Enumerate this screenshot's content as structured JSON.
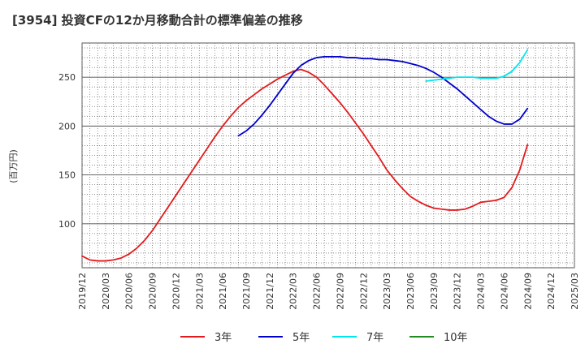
{
  "chart_data": {
    "type": "line",
    "title": "[3954]  投資CFの12か月移動合計の標準偏差の推移",
    "ylabel": "(百万円)",
    "xlabel": "",
    "ylim": [
      55,
      285
    ],
    "yticks": [
      100,
      150,
      200,
      250
    ],
    "xticks": [
      "2019/12",
      "2020/03",
      "2020/06",
      "2020/09",
      "2020/12",
      "2021/03",
      "2021/06",
      "2021/09",
      "2021/12",
      "2022/03",
      "2022/06",
      "2022/09",
      "2022/12",
      "2023/03",
      "2023/06",
      "2023/09",
      "2023/12",
      "2024/03",
      "2024/06",
      "2024/09",
      "2024/12",
      "2025/03"
    ],
    "grid": true,
    "legend_position": "bottom",
    "series": [
      {
        "name": "3年",
        "color": "#e31a1c",
        "points": [
          [
            "2019/12",
            67
          ],
          [
            "2020/01",
            63
          ],
          [
            "2020/02",
            62
          ],
          [
            "2020/03",
            62
          ],
          [
            "2020/04",
            63
          ],
          [
            "2020/05",
            65
          ],
          [
            "2020/06",
            69
          ],
          [
            "2020/07",
            75
          ],
          [
            "2020/08",
            83
          ],
          [
            "2020/09",
            93
          ],
          [
            "2020/10",
            105
          ],
          [
            "2020/11",
            117
          ],
          [
            "2020/12",
            129
          ],
          [
            "2021/01",
            141
          ],
          [
            "2021/02",
            153
          ],
          [
            "2021/03",
            165
          ],
          [
            "2021/04",
            177
          ],
          [
            "2021/05",
            189
          ],
          [
            "2021/06",
            200
          ],
          [
            "2021/07",
            210
          ],
          [
            "2021/08",
            219
          ],
          [
            "2021/09",
            226
          ],
          [
            "2021/10",
            232
          ],
          [
            "2021/11",
            238
          ],
          [
            "2021/12",
            243
          ],
          [
            "2022/01",
            248
          ],
          [
            "2022/02",
            252
          ],
          [
            "2022/03",
            256
          ],
          [
            "2022/04",
            258
          ],
          [
            "2022/05",
            255
          ],
          [
            "2022/06",
            250
          ],
          [
            "2022/07",
            242
          ],
          [
            "2022/08",
            233
          ],
          [
            "2022/09",
            224
          ],
          [
            "2022/10",
            214
          ],
          [
            "2022/11",
            203
          ],
          [
            "2022/12",
            192
          ],
          [
            "2023/01",
            180
          ],
          [
            "2023/02",
            168
          ],
          [
            "2023/03",
            155
          ],
          [
            "2023/04",
            145
          ],
          [
            "2023/05",
            136
          ],
          [
            "2023/06",
            128
          ],
          [
            "2023/07",
            123
          ],
          [
            "2023/08",
            119
          ],
          [
            "2023/09",
            116
          ],
          [
            "2023/10",
            115
          ],
          [
            "2023/11",
            114
          ],
          [
            "2023/12",
            114
          ],
          [
            "2024/01",
            115
          ],
          [
            "2024/02",
            118
          ],
          [
            "2024/03",
            122
          ],
          [
            "2024/04",
            123
          ],
          [
            "2024/05",
            124
          ],
          [
            "2024/06",
            127
          ],
          [
            "2024/07",
            137
          ],
          [
            "2024/08",
            155
          ],
          [
            "2024/09",
            181
          ]
        ]
      },
      {
        "name": "5年",
        "color": "#0000cc",
        "points": [
          [
            "2021/08",
            190
          ],
          [
            "2021/09",
            195
          ],
          [
            "2021/10",
            202
          ],
          [
            "2021/11",
            211
          ],
          [
            "2021/12",
            221
          ],
          [
            "2022/01",
            232
          ],
          [
            "2022/02",
            243
          ],
          [
            "2022/03",
            254
          ],
          [
            "2022/04",
            262
          ],
          [
            "2022/05",
            267
          ],
          [
            "2022/06",
            270
          ],
          [
            "2022/07",
            271
          ],
          [
            "2022/08",
            271
          ],
          [
            "2022/09",
            271
          ],
          [
            "2022/10",
            270
          ],
          [
            "2022/11",
            270
          ],
          [
            "2022/12",
            269
          ],
          [
            "2023/01",
            269
          ],
          [
            "2023/02",
            268
          ],
          [
            "2023/03",
            268
          ],
          [
            "2023/04",
            267
          ],
          [
            "2023/05",
            266
          ],
          [
            "2023/06",
            264
          ],
          [
            "2023/07",
            262
          ],
          [
            "2023/08",
            259
          ],
          [
            "2023/09",
            255
          ],
          [
            "2023/10",
            250
          ],
          [
            "2023/11",
            244
          ],
          [
            "2023/12",
            238
          ],
          [
            "2024/01",
            231
          ],
          [
            "2024/02",
            224
          ],
          [
            "2024/03",
            217
          ],
          [
            "2024/04",
            210
          ],
          [
            "2024/05",
            205
          ],
          [
            "2024/06",
            202
          ],
          [
            "2024/07",
            202
          ],
          [
            "2024/08",
            207
          ],
          [
            "2024/09",
            218
          ]
        ]
      },
      {
        "name": "7年",
        "color": "#00e5ee",
        "points": [
          [
            "2023/08",
            246
          ],
          [
            "2023/09",
            247
          ],
          [
            "2023/10",
            248
          ],
          [
            "2023/11",
            249
          ],
          [
            "2023/12",
            250
          ],
          [
            "2024/01",
            250
          ],
          [
            "2024/02",
            250
          ],
          [
            "2024/03",
            249
          ],
          [
            "2024/04",
            249
          ],
          [
            "2024/05",
            249
          ],
          [
            "2024/06",
            251
          ],
          [
            "2024/07",
            256
          ],
          [
            "2024/08",
            265
          ],
          [
            "2024/09",
            278
          ]
        ]
      },
      {
        "name": "10年",
        "color": "#228b22",
        "points": []
      }
    ]
  }
}
